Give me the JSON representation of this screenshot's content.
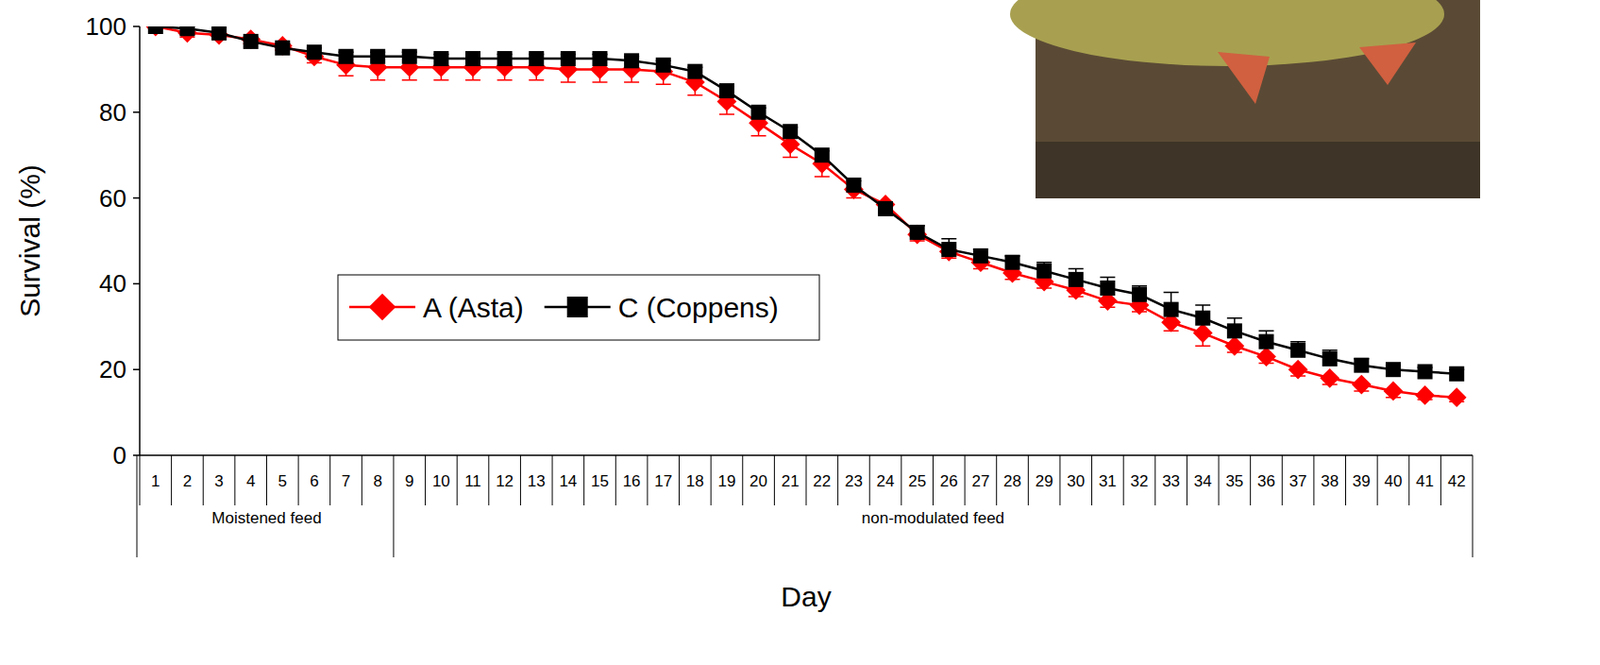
{
  "chart_data": {
    "type": "line",
    "x_label": "Day",
    "y_label": "Survival (%)",
    "categories": [
      "1",
      "2",
      "3",
      "4",
      "5",
      "6",
      "7",
      "8",
      "9",
      "10",
      "11",
      "12",
      "13",
      "14",
      "15",
      "16",
      "17",
      "18",
      "19",
      "20",
      "21",
      "22",
      "23",
      "24",
      "25",
      "26",
      "27",
      "28",
      "29",
      "30",
      "31",
      "32",
      "33",
      "34",
      "35",
      "36",
      "37",
      "38",
      "39",
      "40",
      "41",
      "42"
    ],
    "groups": [
      {
        "label": "Moistened feed",
        "span": 8
      },
      {
        "label": "non-modulated feed",
        "span": 34
      }
    ],
    "ylim": [
      0,
      100
    ],
    "yticks": [
      0,
      20,
      40,
      60,
      80,
      100
    ],
    "grid": false,
    "legend": "left",
    "series": [
      {
        "name": "A (Asta)",
        "color": "#ff0000",
        "marker": "diamond",
        "line_style": "solid",
        "values": [
          100,
          98.5,
          98,
          97,
          95.5,
          93,
          91,
          90.5,
          90.5,
          90.5,
          90.5,
          90.5,
          90.5,
          90,
          90,
          90,
          89.5,
          87,
          82.5,
          77.5,
          72.5,
          68,
          62,
          58.5,
          51.5,
          47.5,
          45,
          42.5,
          40.5,
          38.5,
          36,
          35,
          31,
          28.5,
          25.5,
          23,
          20,
          18,
          16.5,
          15,
          14,
          13.5
        ],
        "errors": [
          0.5,
          1,
          1,
          1,
          1,
          1.5,
          2.5,
          3,
          3,
          3,
          3,
          3,
          3,
          3,
          3,
          3,
          3,
          3,
          3,
          3,
          3,
          3,
          2,
          1.5,
          1.5,
          1.5,
          1.5,
          1.5,
          1.5,
          1.5,
          1.5,
          1.5,
          2,
          3,
          1.5,
          1.5,
          1.5,
          1.5,
          1.5,
          1.5,
          1,
          1
        ]
      },
      {
        "name": "C (Coppens)",
        "color": "#000000",
        "marker": "square",
        "line_style": "solid",
        "values": [
          100,
          99.5,
          98.5,
          96.5,
          95,
          94,
          93,
          93,
          93,
          92.5,
          92.5,
          92.5,
          92.5,
          92.5,
          92.5,
          92,
          91,
          89.5,
          85,
          80,
          75.5,
          70,
          63,
          57.5,
          52,
          48,
          46.5,
          45,
          43,
          41,
          39,
          37.5,
          34,
          32,
          29,
          26.5,
          24.5,
          22.5,
          21,
          20,
          19.5,
          19
        ],
        "errors": [
          0.5,
          0.5,
          1,
          1,
          1,
          1,
          1,
          1,
          1,
          1,
          1,
          1,
          1,
          1,
          1,
          1,
          1,
          1,
          1,
          1,
          1,
          1,
          1,
          1,
          1.5,
          2.5,
          1.5,
          1.5,
          2,
          2.5,
          2.5,
          2,
          4,
          3,
          3,
          2.5,
          2,
          2,
          1.5,
          1,
          1,
          1
        ]
      }
    ]
  }
}
